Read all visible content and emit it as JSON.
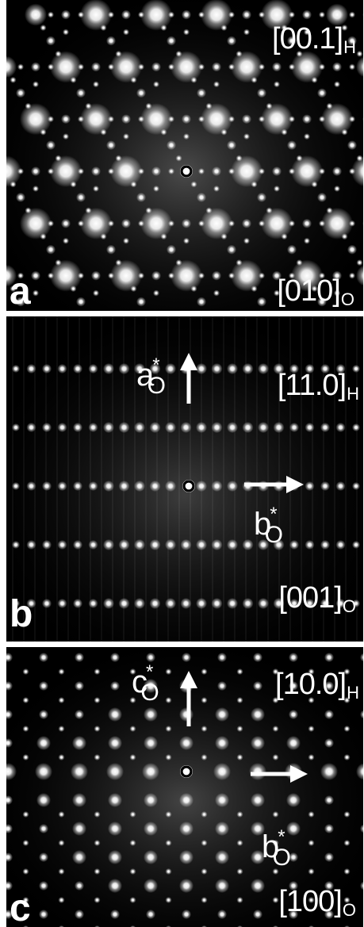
{
  "panels": [
    {
      "letter": "a",
      "zone_top": {
        "main": "[00.1]",
        "sub": "H"
      },
      "zone_bottom": {
        "main": "[010]",
        "sub": "O"
      }
    },
    {
      "letter": "b",
      "zone_top": {
        "main": "[11.0]",
        "sub": "H"
      },
      "zone_bottom": {
        "main": "[001]",
        "sub": "O"
      },
      "vec_up": {
        "base": "a",
        "sup": "*",
        "sub": "O"
      },
      "vec_right": {
        "base": "b",
        "sup": "*",
        "sub": "O"
      }
    },
    {
      "letter": "c",
      "zone_top": {
        "main": "[10.0]",
        "sub": "H"
      },
      "zone_bottom": {
        "main": "[100]",
        "sub": "O"
      },
      "vec_up": {
        "base": "c",
        "sup": "*",
        "sub": "O"
      },
      "vec_right": {
        "base": "b",
        "sup": "*",
        "sub": "O"
      }
    }
  ],
  "colors": {
    "background": "#000000",
    "spot": "#ffffff",
    "separator": "#ffffff"
  }
}
